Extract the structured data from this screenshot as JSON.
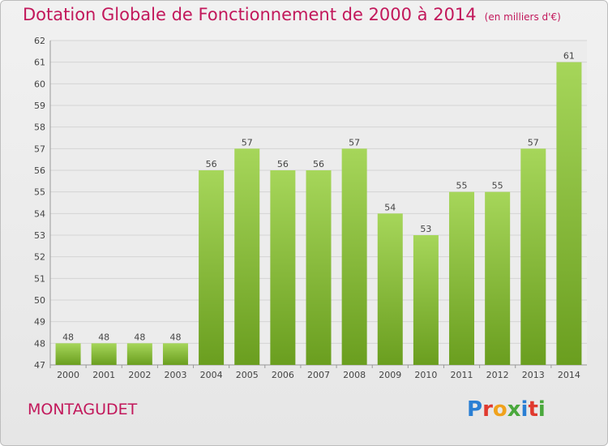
{
  "header": {
    "title": "Dotation Globale de Fonctionnement de 2000 à 2014",
    "unit_note": "(en milliers d'€)"
  },
  "footer": {
    "commune": "MONTAGUDET",
    "logo_text": "Proxiti"
  },
  "colors": {
    "bar_light": "#a6d65a",
    "bar_dark": "#6a9e1f",
    "title": "#c2185b"
  },
  "chart_data": {
    "type": "bar",
    "title": "Dotation Globale de Fonctionnement de 2000 à 2014",
    "subtitle": "(en milliers d'€)",
    "xlabel": "",
    "ylabel": "",
    "categories": [
      "2000",
      "2001",
      "2002",
      "2003",
      "2004",
      "2005",
      "2006",
      "2007",
      "2008",
      "2009",
      "2010",
      "2011",
      "2012",
      "2013",
      "2014"
    ],
    "values": [
      48,
      48,
      48,
      48,
      56,
      57,
      56,
      56,
      57,
      54,
      53,
      55,
      55,
      57,
      61
    ],
    "ylim": [
      47,
      62
    ],
    "yticks": [
      47,
      48,
      49,
      50,
      51,
      52,
      53,
      54,
      55,
      56,
      57,
      58,
      59,
      60,
      61,
      62
    ],
    "grid": true,
    "legend": "none"
  }
}
